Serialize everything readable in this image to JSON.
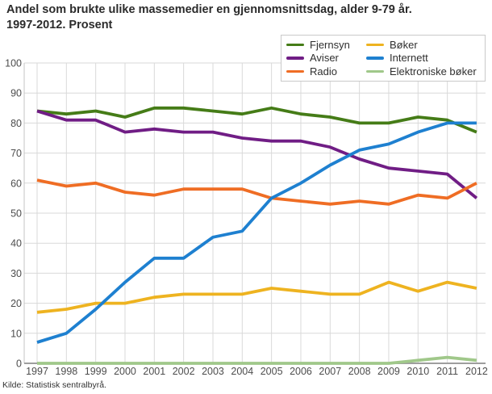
{
  "header": {
    "title_line1": "Andel som brukte ulike massemedier en gjennomsnittsdag, alder 9-79 år.",
    "title_line2": "1997-2012. Prosent"
  },
  "source": {
    "text": "Kilde: Statistisk sentralbyrå."
  },
  "style": {
    "gridline_color": "#d9d9d9",
    "axis_line_color": "#9e9e9e",
    "plot_edge_color": "#c4c4c4",
    "tick_label_color": "#4d4d4d",
    "legend_border_color": "#c9c9c9"
  },
  "chart_data": {
    "type": "line",
    "title": "Andel som brukte ulike massemedier en gjennomsnittsdag, alder 9-79 år. 1997-2012. Prosent",
    "xlabel": "",
    "ylabel": "",
    "x": [
      1997,
      1998,
      1999,
      2000,
      2001,
      2002,
      2003,
      2004,
      2005,
      2006,
      2007,
      2008,
      2009,
      2010,
      2011,
      2012
    ],
    "ylim": [
      0,
      100
    ],
    "ytick_step": 10,
    "grid": true,
    "legend_position": "top-right",
    "legend_columns": [
      [
        "Fjernsyn",
        "Aviser",
        "Radio"
      ],
      [
        "Bøker",
        "Internett",
        "Elektroniske bøker"
      ]
    ],
    "series": [
      {
        "name": "Fjernsyn",
        "color": "#457c17",
        "values": [
          84,
          83,
          84,
          82,
          85,
          85,
          84,
          83,
          85,
          83,
          82,
          80,
          80,
          82,
          81,
          77
        ]
      },
      {
        "name": "Aviser",
        "color": "#701d85",
        "values": [
          84,
          81,
          81,
          77,
          78,
          77,
          77,
          75,
          74,
          74,
          72,
          68,
          65,
          64,
          63,
          55
        ]
      },
      {
        "name": "Radio",
        "color": "#ef6d24",
        "values": [
          61,
          59,
          60,
          57,
          56,
          58,
          58,
          58,
          55,
          54,
          53,
          54,
          53,
          56,
          55,
          60
        ]
      },
      {
        "name": "Bøker",
        "color": "#eeb320",
        "values": [
          17,
          18,
          20,
          20,
          22,
          23,
          23,
          23,
          25,
          24,
          23,
          23,
          27,
          24,
          27,
          25
        ]
      },
      {
        "name": "Internett",
        "color": "#1e80d0",
        "values": [
          7,
          10,
          18,
          27,
          35,
          35,
          42,
          44,
          55,
          60,
          66,
          71,
          73,
          77,
          80,
          80
        ]
      },
      {
        "name": "Elektroniske bøker",
        "color": "#a0c88a",
        "values": [
          0,
          0,
          0,
          0,
          0,
          0,
          0,
          0,
          0,
          0,
          0,
          0,
          0,
          1,
          2,
          1
        ]
      }
    ]
  }
}
